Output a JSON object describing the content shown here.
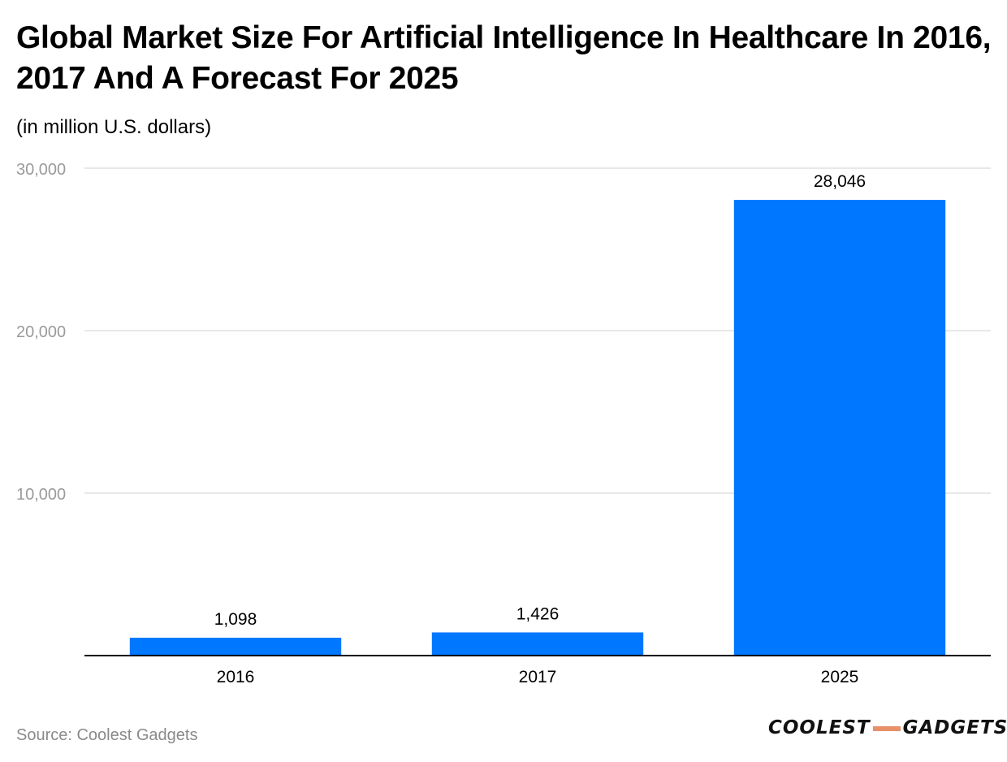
{
  "title": "Global Market Size For Artificial Intelligence In Healthcare In 2016, 2017 And A Forecast For 2025",
  "subtitle": "(in million U.S. dollars)",
  "source": "Source: Coolest Gadgets",
  "logo": {
    "left": "COOLEST",
    "right": "GADGETS"
  },
  "colors": {
    "bar": "#0077ff",
    "grid": "#e0e0e0",
    "axis": "#000000",
    "tick_text": "#9a9a9a",
    "logo_dash": "#e8906a"
  },
  "chart_data": {
    "type": "bar",
    "title": "Global Market Size For Artificial Intelligence In Healthcare In 2016, 2017 And A Forecast For 2025",
    "subtitle": "(in million U.S. dollars)",
    "categories": [
      "2016",
      "2017",
      "2025"
    ],
    "values": [
      1098,
      1426,
      28046
    ],
    "data_labels": [
      "1,098",
      "1,426",
      "28,046"
    ],
    "yticks": [
      10000,
      20000,
      30000
    ],
    "ytick_labels": [
      "10,000",
      "20,000",
      "30,000"
    ],
    "ylim": [
      0,
      30000
    ],
    "xlabel": "",
    "ylabel": "",
    "grid": true,
    "legend": "none"
  }
}
